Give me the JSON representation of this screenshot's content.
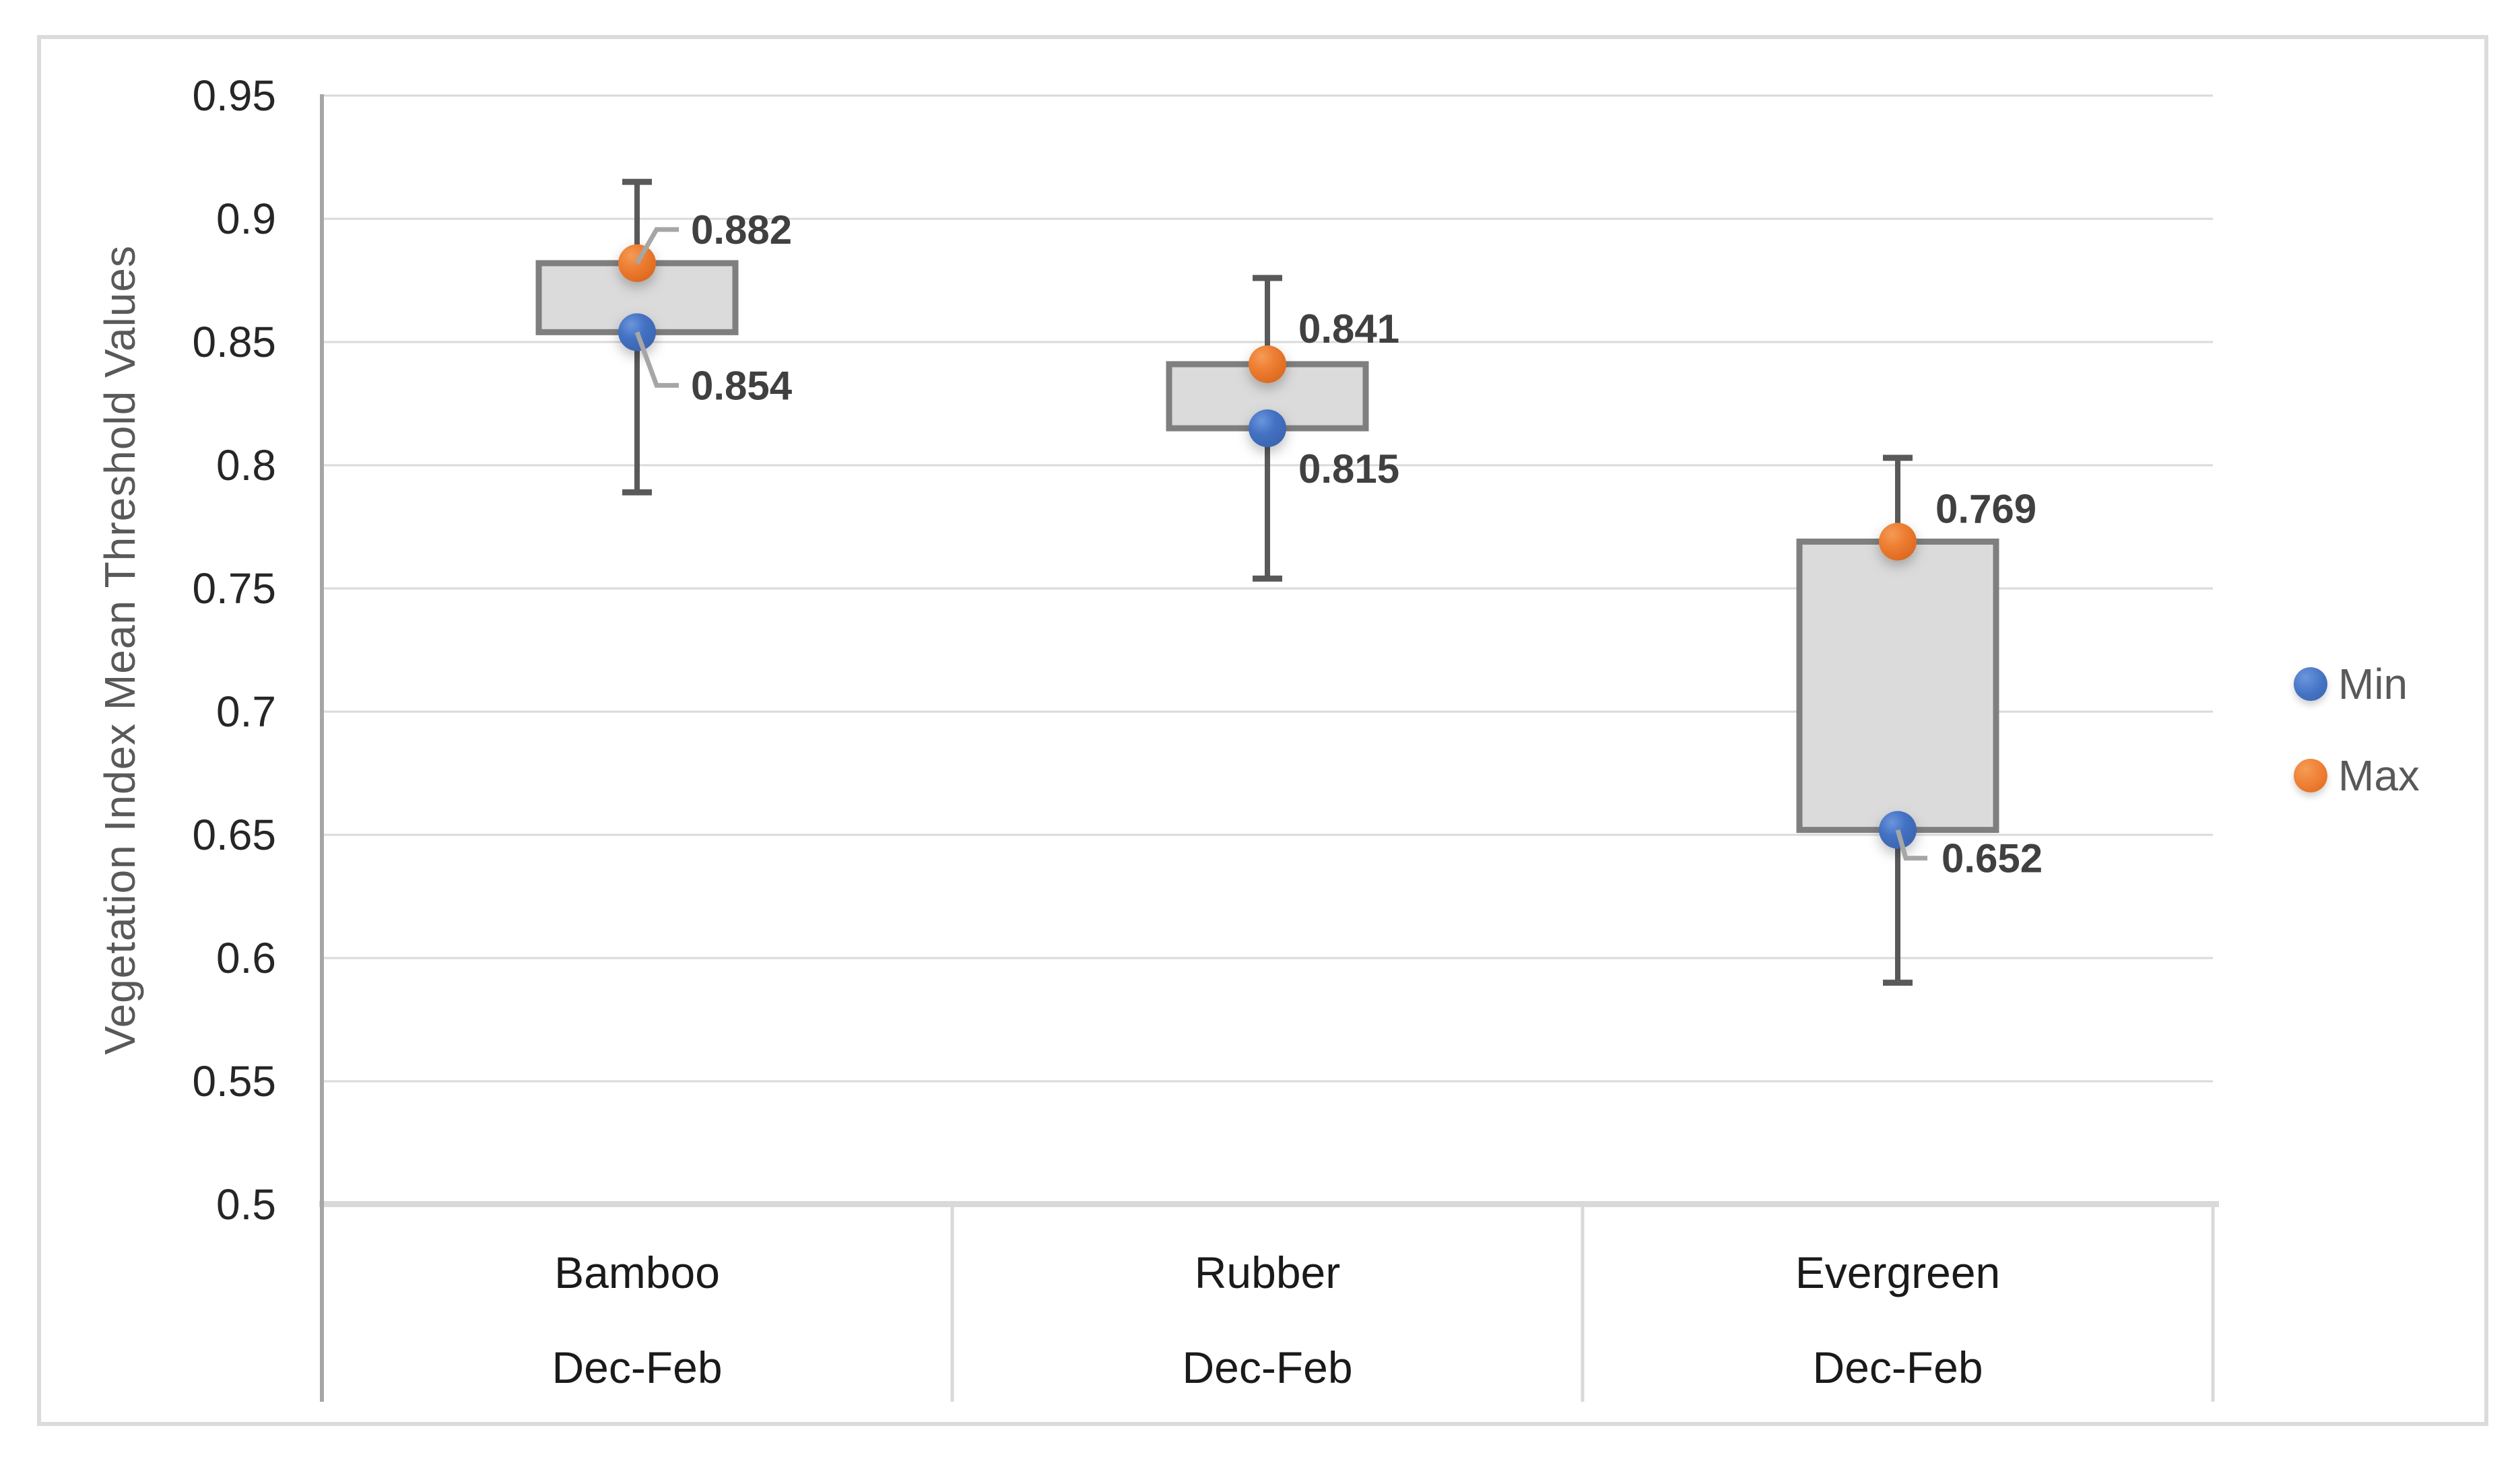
{
  "figure": {
    "background": "#FFFFFF",
    "border_color": "#DBDBDB"
  },
  "legend": {
    "position": "right",
    "items": [
      {
        "label": "Min",
        "color": "#4472C4",
        "marker": "circle"
      },
      {
        "label": "Max",
        "color": "#ED7D31",
        "marker": "circle"
      }
    ]
  },
  "chart_data": {
    "type": "box",
    "title": "",
    "xlabel": "",
    "ylabel": "Vegetation Index Mean Threshold Values",
    "ylim": [
      0.5,
      0.95
    ],
    "ytick_step": 0.05,
    "ytick_labels": [
      "0.95",
      "0.9",
      "0.85",
      "0.8",
      "0.75",
      "0.7",
      "0.65",
      "0.6",
      "0.55",
      "0.5"
    ],
    "grid": true,
    "legend_position": "right",
    "categories": [
      "Bamboo",
      "Rubber",
      "Evergreen"
    ],
    "category_sublabels": [
      "Dec-Feb",
      "Dec-Feb",
      "Dec-Feb"
    ],
    "series": [
      {
        "name": "Min",
        "color": "#4472C4",
        "values": [
          0.854,
          0.815,
          0.652
        ]
      },
      {
        "name": "Max",
        "color": "#ED7D31",
        "values": [
          0.882,
          0.841,
          0.769
        ]
      }
    ],
    "boxes": [
      {
        "category": "Bamboo",
        "period": "Dec-Feb",
        "min": 0.854,
        "max": 0.882,
        "min_label": "0.854",
        "max_label": "0.882",
        "whisker_low": 0.789,
        "whisker_high": 0.915
      },
      {
        "category": "Rubber",
        "period": "Dec-Feb",
        "min": 0.815,
        "max": 0.841,
        "min_label": "0.815",
        "max_label": "0.841",
        "whisker_low": 0.754,
        "whisker_high": 0.876
      },
      {
        "category": "Evergreen",
        "period": "Dec-Feb",
        "min": 0.652,
        "max": 0.769,
        "min_label": "0.652",
        "max_label": "0.769",
        "whisker_low": 0.59,
        "whisker_high": 0.803
      }
    ],
    "colors": {
      "min_point": "#4472C4",
      "max_point": "#ED7D31",
      "box_fill": "#DBDBDB",
      "box_border": "#7F7F7F",
      "whisker": "#595959",
      "gridline": "#DADADA",
      "axis_line": "#A6A6A6",
      "table_border": "#D9D9D9",
      "tick_label": "#262626",
      "category_label": "#1A1A1A",
      "data_label": "#404040",
      "axis_title": "#595959",
      "legend_text": "#595959",
      "leader_line": "#A6A6A6",
      "figure_border": "#DBDBDB"
    }
  }
}
